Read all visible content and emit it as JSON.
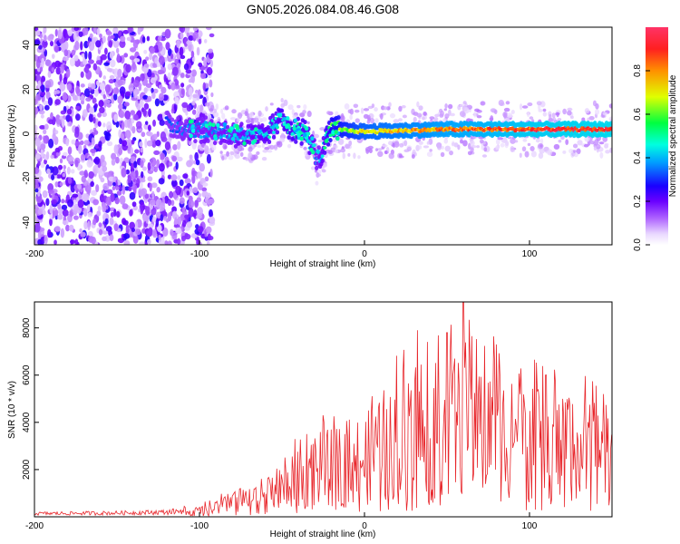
{
  "title": "GN05.2026.084.08.46.G08",
  "chart_data": [
    {
      "type": "heatmap",
      "title": "GN05.2026.084.08.46.G08",
      "xlabel": "Height of straight line (km)",
      "ylabel": "Frequency (Hz)",
      "xlim": [
        -200,
        150
      ],
      "ylim": [
        -50,
        48
      ],
      "xticks": [
        -200,
        -100,
        0,
        100
      ],
      "yticks": [
        -40,
        -20,
        0,
        20,
        40
      ],
      "colorbar": {
        "label": "Normalized spectral amplitude",
        "range": [
          0,
          1
        ],
        "ticks": [
          "0.0",
          "0.2",
          "0.4",
          "0.6",
          "0.8"
        ],
        "colormap": [
          "#ffffff",
          "#e9d8ff",
          "#b066ff",
          "#6a00ff",
          "#1a00ff",
          "#00a0ff",
          "#00ffe0",
          "#00ff40",
          "#e0ff00",
          "#ff9000",
          "#ff2020",
          "#ff3366"
        ]
      },
      "ridge": [
        {
          "x": -120,
          "f": 4,
          "amp": 0.35
        },
        {
          "x": -100,
          "f": 2,
          "amp": 0.4
        },
        {
          "x": -80,
          "f": 0,
          "amp": 0.42
        },
        {
          "x": -62,
          "f": -2,
          "amp": 0.45
        },
        {
          "x": -50,
          "f": 7,
          "amp": 0.5
        },
        {
          "x": -45,
          "f": 3,
          "amp": 0.5
        },
        {
          "x": -35,
          "f": 0,
          "amp": 0.5
        },
        {
          "x": -28,
          "f": -12,
          "amp": 0.4
        },
        {
          "x": -20,
          "f": 2,
          "amp": 0.6
        },
        {
          "x": 0,
          "f": 1,
          "amp": 0.75
        },
        {
          "x": 50,
          "f": 2,
          "amp": 0.85
        },
        {
          "x": 100,
          "f": 2,
          "amp": 0.92
        },
        {
          "x": 150,
          "f": 2,
          "amp": 0.95
        }
      ],
      "noise_region_x": [
        -200,
        -100
      ]
    },
    {
      "type": "line",
      "xlabel": "Height of straight line (km)",
      "ylabel": "SNR (10 * v/v)",
      "xlim": [
        -200,
        150
      ],
      "ylim": [
        0,
        9100
      ],
      "xticks": [
        -200,
        -100,
        0,
        100
      ],
      "yticks": [
        2000,
        4000,
        6000,
        8000
      ],
      "color": "#e8262b",
      "series": [
        {
          "name": "SNR",
          "envelope_x": [
            -200,
            -150,
            -120,
            -100,
            -80,
            -60,
            -45,
            -35,
            -25,
            -15,
            0,
            20,
            40,
            60,
            80,
            100,
            120,
            150
          ],
          "envelope_y": [
            150,
            180,
            220,
            350,
            800,
            1100,
            2000,
            2500,
            2800,
            3200,
            3500,
            4500,
            5200,
            5500,
            5000,
            4500,
            4000,
            3800
          ],
          "peaks": [
            {
              "x": -35,
              "y": 3500
            },
            {
              "x": 32,
              "y": 7900
            },
            {
              "x": 50,
              "y": 7800
            },
            {
              "x": 60,
              "y": 9100
            },
            {
              "x": 80,
              "y": 7300
            },
            {
              "x": 110,
              "y": 6000
            },
            {
              "x": 145,
              "y": 5200
            }
          ]
        }
      ]
    }
  ]
}
